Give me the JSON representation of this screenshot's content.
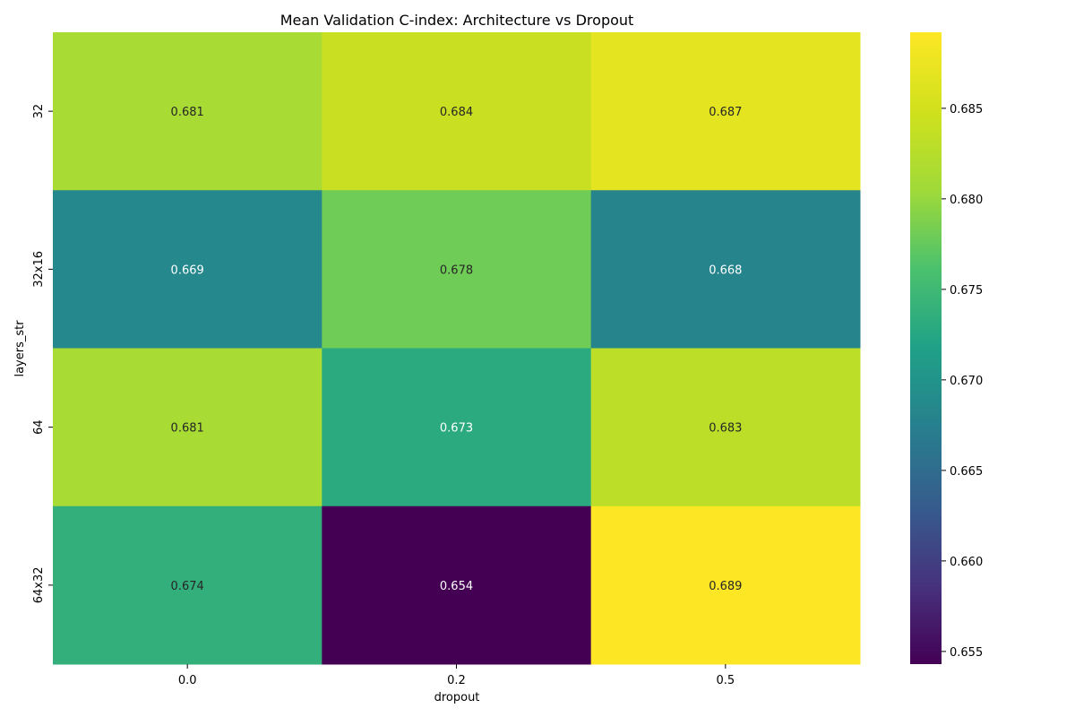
{
  "chart_data": {
    "type": "heatmap",
    "title": "Mean Validation C-index: Architecture vs Dropout",
    "xlabel": "dropout",
    "ylabel": "layers_str",
    "x_categories": [
      "0.0",
      "0.2",
      "0.5"
    ],
    "y_categories": [
      "32",
      "32x16",
      "64",
      "64x32"
    ],
    "values": [
      [
        0.6812,
        0.6841,
        0.6868
      ],
      [
        0.6686,
        0.678,
        0.668
      ],
      [
        0.6812,
        0.673,
        0.683
      ],
      [
        0.6737,
        0.6543,
        0.6892
      ]
    ],
    "annotations": [
      [
        "0.681",
        "0.684",
        "0.687"
      ],
      [
        "0.669",
        "0.678",
        "0.668"
      ],
      [
        "0.681",
        "0.673",
        "0.683"
      ],
      [
        "0.674",
        "0.654",
        "0.689"
      ]
    ],
    "colormap": "viridis",
    "vmin": 0.6543,
    "vmax": 0.6892,
    "colorbar_ticks": [
      "0.655",
      "0.660",
      "0.665",
      "0.670",
      "0.675",
      "0.680",
      "0.685"
    ],
    "colorbar_tick_values": [
      0.655,
      0.66,
      0.665,
      0.67,
      0.675,
      0.68,
      0.685
    ],
    "grid": false,
    "legend": "colorbar-right"
  }
}
